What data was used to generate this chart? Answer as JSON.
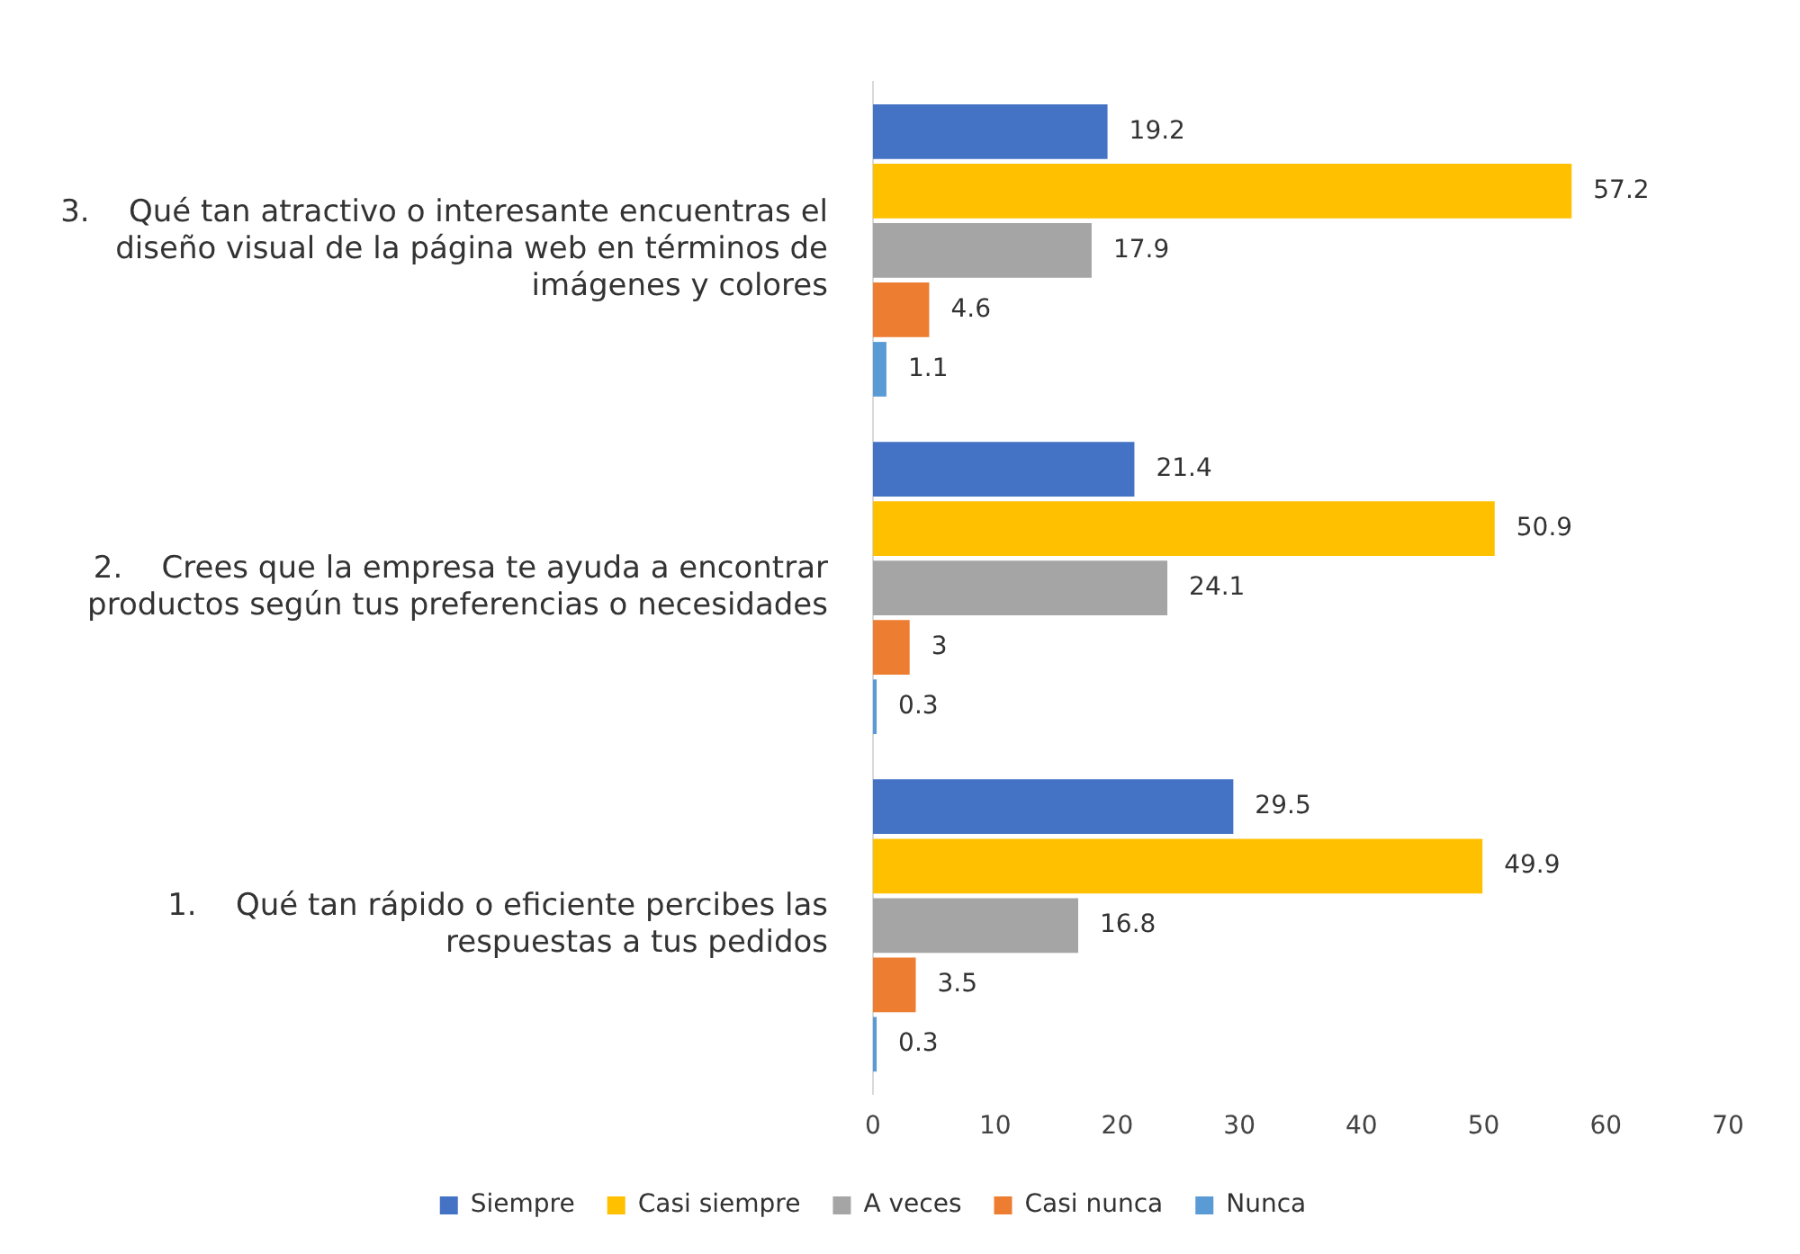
{
  "chart_data": {
    "type": "bar",
    "orientation": "horizontal",
    "categories": [
      "3.    Qué tan atractivo o interesante encuentras el diseño visual de la página web en términos de imágenes y colores",
      "2.    Crees que la empresa te ayuda a encontrar productos según tus preferencias o necesidades",
      "1.    Qué tan rápido o eficiente percibes las respuestas a tus pedidos"
    ],
    "series": [
      {
        "name": "Siempre",
        "color": "#4472c4",
        "values": [
          19.2,
          21.4,
          29.5
        ]
      },
      {
        "name": "Casi siempre",
        "color": "#ffc000",
        "values": [
          57.2,
          50.9,
          49.9
        ]
      },
      {
        "name": "A veces",
        "color": "#a5a5a5",
        "values": [
          17.9,
          24.1,
          16.8
        ]
      },
      {
        "name": "Casi nunca",
        "color": "#ed7d31",
        "values": [
          4.6,
          3,
          3.5
        ]
      },
      {
        "name": "Nunca",
        "color": "#5b9bd5",
        "values": [
          1.1,
          0.3,
          0.3
        ]
      }
    ],
    "xlim": [
      0,
      70
    ],
    "xticks": [
      0,
      10,
      20,
      30,
      40,
      50,
      60,
      70
    ],
    "grid": false,
    "legend": "bottom",
    "data_labels": true
  }
}
